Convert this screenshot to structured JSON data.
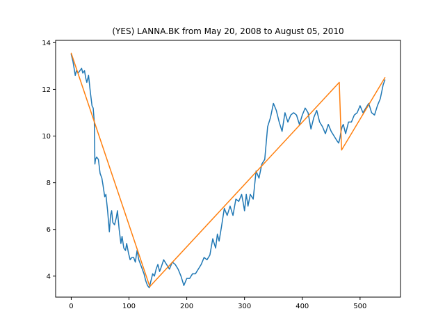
{
  "chart_data": {
    "type": "line",
    "title": "(YES) LANNA.BK from May 20, 2008 to August 05, 2010",
    "xlabel": "",
    "ylabel": "",
    "xlim": [
      -27,
      570
    ],
    "ylim": [
      3.1,
      14.1
    ],
    "xticks": [
      0,
      100,
      200,
      300,
      400,
      500
    ],
    "yticks": [
      4,
      6,
      8,
      10,
      12,
      14
    ],
    "grid": false,
    "colors": {
      "price": "#1f77b4",
      "trend": "#ff7f0e"
    },
    "series": [
      {
        "key": "price",
        "x": [
          0,
          3,
          5,
          7,
          9,
          12,
          15,
          18,
          20,
          23,
          25,
          27,
          30,
          33,
          36,
          38,
          40,
          41,
          42,
          44,
          47,
          50,
          53,
          55,
          58,
          60,
          63,
          66,
          68,
          70,
          72,
          75,
          78,
          80,
          83,
          86,
          88,
          91,
          94,
          96,
          99,
          102,
          105,
          108,
          111,
          114,
          117,
          120,
          123,
          126,
          129,
          132,
          135,
          138,
          141,
          144,
          147,
          150,
          153,
          156,
          160,
          165,
          170,
          175,
          180,
          185,
          190,
          195,
          200,
          205,
          210,
          215,
          220,
          225,
          230,
          235,
          240,
          245,
          250,
          253,
          256,
          260,
          265,
          270,
          275,
          280,
          285,
          290,
          295,
          298,
          300,
          303,
          306,
          310,
          315,
          320,
          325,
          330,
          335,
          340,
          345,
          350,
          355,
          360,
          365,
          370,
          375,
          380,
          385,
          390,
          395,
          400,
          405,
          410,
          415,
          420,
          425,
          430,
          435,
          440,
          445,
          450,
          455,
          460,
          463,
          465,
          467,
          469,
          471,
          475,
          480,
          485,
          490,
          495,
          500,
          505,
          510,
          515,
          520,
          525,
          530,
          535,
          540,
          543
        ],
        "y": [
          13.5,
          13.2,
          12.9,
          12.6,
          12.8,
          12.7,
          12.8,
          12.9,
          12.7,
          12.8,
          12.5,
          12.3,
          12.6,
          11.9,
          11.3,
          11.2,
          10.6,
          8.8,
          9.0,
          9.1,
          9.0,
          8.4,
          8.2,
          7.9,
          7.4,
          7.5,
          6.8,
          5.9,
          6.6,
          6.8,
          6.3,
          6.2,
          6.5,
          6.8,
          6.0,
          5.4,
          5.7,
          5.2,
          5.1,
          5.4,
          5.0,
          4.7,
          4.8,
          4.8,
          4.6,
          5.1,
          4.7,
          4.5,
          4.3,
          4.1,
          3.8,
          3.6,
          3.5,
          3.8,
          4.1,
          4.0,
          4.3,
          4.5,
          4.2,
          4.4,
          4.7,
          4.5,
          4.3,
          4.6,
          4.5,
          4.3,
          4.0,
          3.6,
          3.9,
          3.9,
          4.1,
          4.1,
          4.3,
          4.5,
          4.8,
          4.7,
          4.9,
          5.6,
          5.2,
          5.8,
          5.5,
          6.1,
          6.9,
          6.6,
          7.0,
          6.6,
          7.3,
          7.2,
          7.5,
          7.1,
          6.8,
          7.5,
          7.0,
          7.5,
          7.3,
          8.5,
          8.2,
          8.8,
          9.0,
          10.4,
          10.8,
          11.4,
          11.1,
          10.6,
          10.2,
          11.0,
          10.6,
          10.9,
          11.0,
          10.9,
          10.5,
          10.9,
          11.2,
          11.0,
          10.3,
          10.8,
          11.1,
          10.6,
          10.4,
          10.1,
          10.5,
          10.2,
          10.0,
          9.8,
          9.7,
          9.9,
          10.2,
          10.4,
          10.5,
          10.1,
          10.6,
          10.6,
          10.9,
          11.0,
          11.3,
          11.0,
          11.2,
          11.4,
          11.0,
          10.9,
          11.3,
          11.6,
          12.2,
          12.4
        ]
      },
      {
        "key": "trend",
        "x": [
          0,
          136,
          464,
          468,
          543
        ],
        "y": [
          13.55,
          3.55,
          12.3,
          9.4,
          12.5
        ]
      }
    ]
  }
}
